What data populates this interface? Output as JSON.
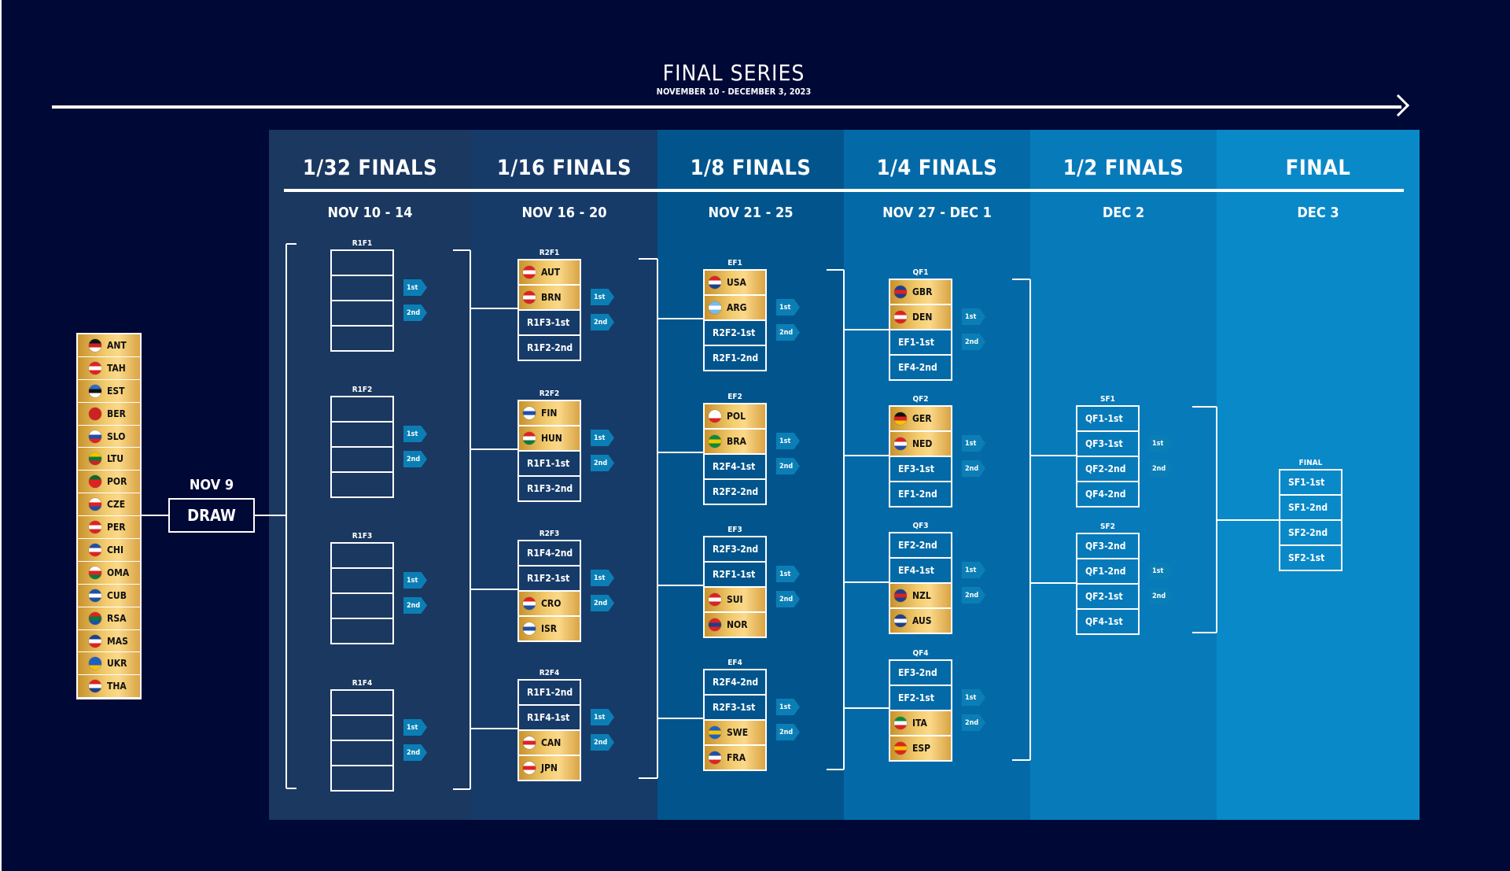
{
  "header": {
    "title": "FINAL SERIES",
    "subtitle": "NOVEMBER 10 - DECEMBER 3, 2023"
  },
  "rounds": [
    {
      "title": "1/32 FINALS",
      "dates": "NOV 10 - 14",
      "color": "#1a3860"
    },
    {
      "title": "1/16 FINALS",
      "dates": "NOV 16 - 20",
      "color": "#173b69"
    },
    {
      "title": "1/8 FINALS",
      "dates": "NOV 21 - 25",
      "color": "#02558c"
    },
    {
      "title": "1/4 FINALS",
      "dates": "NOV 27 - DEC 1",
      "color": "#046aa7"
    },
    {
      "title": "1/2 FINALS",
      "dates": "DEC 2",
      "color": "#077aba"
    },
    {
      "title": "FINAL",
      "dates": "DEC 3",
      "color": "#0a89c8"
    }
  ],
  "draw": {
    "date": "NOV 9",
    "label": "DRAW"
  },
  "teams": [
    "ANT",
    "TAH",
    "EST",
    "BER",
    "SLO",
    "LTU",
    "POR",
    "CZE",
    "PER",
    "CHI",
    "OMA",
    "CUB",
    "RSA",
    "MAS",
    "UKR",
    "THA"
  ],
  "tags": {
    "first": "1st",
    "second": "2nd"
  },
  "matches": [
    [
      {
        "id": "R1F1",
        "cells": [
          "",
          "",
          "",
          ""
        ]
      },
      {
        "id": "R1F2",
        "cells": [
          "",
          "",
          "",
          ""
        ]
      },
      {
        "id": "R1F3",
        "cells": [
          "",
          "",
          "",
          ""
        ]
      },
      {
        "id": "R1F4",
        "cells": [
          "",
          "",
          "",
          ""
        ]
      }
    ],
    [
      {
        "id": "R2F1",
        "cells": [
          "AUT",
          "BRN",
          "R1F3-1st",
          "R1F2-2nd"
        ]
      },
      {
        "id": "R2F2",
        "cells": [
          "FIN",
          "HUN",
          "R1F1-1st",
          "R1F3-2nd"
        ]
      },
      {
        "id": "R2F3",
        "cells": [
          "R1F4-2nd",
          "R1F2-1st",
          "CRO",
          "ISR"
        ]
      },
      {
        "id": "R2F4",
        "cells": [
          "R1F1-2nd",
          "R1F4-1st",
          "CAN",
          "JPN"
        ]
      }
    ],
    [
      {
        "id": "EF1",
        "cells": [
          "USA",
          "ARG",
          "R2F2-1st",
          "R2F1-2nd"
        ]
      },
      {
        "id": "EF2",
        "cells": [
          "POL",
          "BRA",
          "R2F4-1st",
          "R2F2-2nd"
        ]
      },
      {
        "id": "EF3",
        "cells": [
          "R2F3-2nd",
          "R2F1-1st",
          "SUI",
          "NOR"
        ]
      },
      {
        "id": "EF4",
        "cells": [
          "R2F4-2nd",
          "R2F3-1st",
          "SWE",
          "FRA"
        ]
      }
    ],
    [
      {
        "id": "QF1",
        "cells": [
          "GBR",
          "DEN",
          "EF1-1st",
          "EF4-2nd"
        ]
      },
      {
        "id": "QF2",
        "cells": [
          "GER",
          "NED",
          "EF3-1st",
          "EF1-2nd"
        ]
      },
      {
        "id": "QF3",
        "cells": [
          "EF2-2nd",
          "EF4-1st",
          "NZL",
          "AUS"
        ]
      },
      {
        "id": "QF4",
        "cells": [
          "EF3-2nd",
          "EF2-1st",
          "ITA",
          "ESP"
        ]
      }
    ],
    [
      {
        "id": "SF1",
        "cells": [
          "QF1-1st",
          "QF3-1st",
          "QF2-2nd",
          "QF4-2nd"
        ]
      },
      {
        "id": "SF2",
        "cells": [
          "QF3-2nd",
          "QF1-2nd",
          "QF2-1st",
          "QF4-1st"
        ]
      }
    ],
    [
      {
        "id": "FINAL",
        "cells": [
          "SF1-1st",
          "SF1-2nd",
          "SF2-2nd",
          "SF2-1st"
        ]
      }
    ]
  ],
  "flag_colors": {
    "ANT": [
      "#111",
      "#c22",
      "#fff"
    ],
    "TAH": [
      "#d22",
      "#fff",
      "#d22"
    ],
    "EST": [
      "#2b6cc4",
      "#111",
      "#fff"
    ],
    "BER": [
      "#c22",
      "#c22",
      "#c22"
    ],
    "SLO": [
      "#fff",
      "#1f4fa8",
      "#d22"
    ],
    "LTU": [
      "#f5c400",
      "#0a7a3a",
      "#c22"
    ],
    "POR": [
      "#0a6a2a",
      "#d22",
      "#d22"
    ],
    "CZE": [
      "#fff",
      "#d22",
      "#1f4fa8"
    ],
    "PER": [
      "#d22",
      "#fff",
      "#d22"
    ],
    "CHI": [
      "#1f4fa8",
      "#fff",
      "#d22"
    ],
    "OMA": [
      "#fff",
      "#d22",
      "#0a7a3a"
    ],
    "CUB": [
      "#1f4fa8",
      "#fff",
      "#1f4fa8"
    ],
    "RSA": [
      "#d22",
      "#0a7a3a",
      "#1f4fa8"
    ],
    "MAS": [
      "#1f3f8a",
      "#fff",
      "#d22"
    ],
    "UKR": [
      "#1f5fc4",
      "#1f5fc4",
      "#f5c400"
    ],
    "THA": [
      "#d22",
      "#fff",
      "#1f3f8a"
    ],
    "AUT": [
      "#d22",
      "#fff",
      "#d22"
    ],
    "BRN": [
      "#d22",
      "#fff",
      "#d22"
    ],
    "FIN": [
      "#fff",
      "#1f4fa8",
      "#fff"
    ],
    "HUN": [
      "#d22",
      "#fff",
      "#0a7a3a"
    ],
    "CRO": [
      "#d22",
      "#fff",
      "#1f4fa8"
    ],
    "ISR": [
      "#fff",
      "#1f4fa8",
      "#fff"
    ],
    "CAN": [
      "#fff",
      "#d22",
      "#fff"
    ],
    "JPN": [
      "#fff",
      "#d22",
      "#fff"
    ],
    "USA": [
      "#d22",
      "#fff",
      "#1f3f8a"
    ],
    "ARG": [
      "#7ab8e8",
      "#fff",
      "#7ab8e8"
    ],
    "POL": [
      "#fff",
      "#fff",
      "#d22"
    ],
    "BRA": [
      "#0a8a3a",
      "#f5c400",
      "#0a8a3a"
    ],
    "SUI": [
      "#d22",
      "#fff",
      "#d22"
    ],
    "NOR": [
      "#d22",
      "#1f3f8a",
      "#d22"
    ],
    "SWE": [
      "#1f5fc4",
      "#f5c400",
      "#1f5fc4"
    ],
    "FRA": [
      "#1f4fa8",
      "#fff",
      "#d22"
    ],
    "GBR": [
      "#1f3f8a",
      "#d22",
      "#1f3f8a"
    ],
    "DEN": [
      "#d22",
      "#fff",
      "#d22"
    ],
    "GER": [
      "#111",
      "#d22",
      "#f5c400"
    ],
    "NED": [
      "#d22",
      "#fff",
      "#1f4fa8"
    ],
    "NZL": [
      "#1f3f8a",
      "#d22",
      "#1f3f8a"
    ],
    "AUS": [
      "#1f3f8a",
      "#fff",
      "#1f3f8a"
    ],
    "ITA": [
      "#0a8a3a",
      "#fff",
      "#d22"
    ],
    "ESP": [
      "#d22",
      "#f5c400",
      "#d22"
    ]
  }
}
